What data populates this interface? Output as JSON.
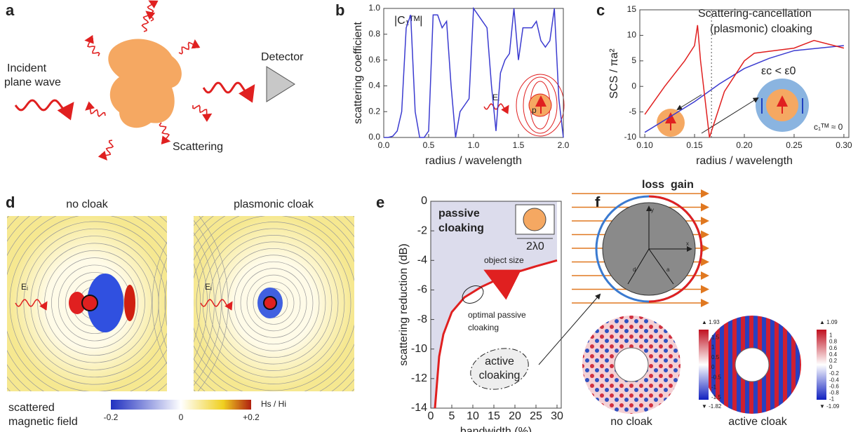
{
  "panels": {
    "a": {
      "letter": "a",
      "incident": [
        "Incident",
        "plane wave"
      ],
      "detector": "Detector",
      "scattering": "Scattering"
    },
    "b": {
      "letter": "b",
      "coefficient_label": "|C₁ᵀᴹ|",
      "field_label": "Eᵢ",
      "dipole_label": "p"
    },
    "c": {
      "letter": "c",
      "title": [
        "Scattering-cancellation",
        "(plasmonic) cloaking"
      ],
      "condition": "εc < ε0",
      "coefficient": "c₁ᵀᴹ ≈ 0"
    },
    "d": {
      "letter": "d",
      "left": "no cloak",
      "right": "plasmonic cloak",
      "field_label": "Eᵢ",
      "caption": [
        "scattered",
        "magnetic field"
      ],
      "colorbar_ticks": [
        "-0.2",
        "0",
        "+0.2"
      ],
      "colorbar_unit": "Hs / Hi"
    },
    "e": {
      "letter": "e",
      "passive": [
        "passive",
        "cloaking"
      ],
      "size": "2λ0",
      "object_size": "object size",
      "optimal": [
        "optimal passive",
        "cloaking"
      ],
      "active": [
        "active",
        "cloaking"
      ]
    },
    "f": {
      "letter": "f",
      "loss": "loss",
      "gain": "gain",
      "axes": [
        "y",
        "x",
        "d",
        "a"
      ],
      "left": "no cloak",
      "right": "active cloak",
      "left_bar": [
        "▲ 1.93",
        "1.5",
        "1",
        "0.5",
        "0",
        "-0.5",
        "-1",
        "-1.5",
        "▼ -1.82"
      ],
      "right_bar": [
        "▲ 1.09",
        "1",
        "0.8",
        "0.6",
        "0.4",
        "0.2",
        "0",
        "-0.2",
        "-0.4",
        "-0.6",
        "-0.8",
        "-1",
        "▼ -1.09"
      ]
    }
  },
  "chart_data": [
    {
      "type": "line",
      "xlabel": "radius / wavelength",
      "ylabel": "scattering coefficient",
      "xlim": [
        0,
        2
      ],
      "ylim": [
        0,
        1
      ],
      "xticks": [
        {
          "value": 0,
          "label": "0.0"
        },
        0.5,
        {
          "value": 1,
          "label": "1.0"
        },
        1.5,
        {
          "value": 2,
          "label": "2.0"
        }
      ],
      "yticks": [
        {
          "value": 0,
          "label": "0.0"
        },
        0.2,
        0.4,
        0.6,
        0.8,
        {
          "value": 1,
          "label": "1.0"
        }
      ],
      "x": [
        0,
        0.05,
        0.1,
        0.15,
        0.2,
        0.25,
        0.3,
        0.35,
        0.4,
        0.45,
        0.5,
        0.55,
        0.6,
        0.65,
        0.7,
        0.75,
        0.8,
        0.85,
        0.9,
        0.95,
        1.0,
        1.05,
        1.1,
        1.15,
        1.2,
        1.25,
        1.3,
        1.35,
        1.4,
        1.45,
        1.5,
        1.55,
        1.6,
        1.65,
        1.7,
        1.75,
        1.8,
        1.85,
        1.9,
        1.95,
        2.0
      ],
      "series": [
        {
          "color": "#3b3bd0",
          "values": [
            0,
            0,
            0.01,
            0.05,
            0.2,
            0.85,
            0.95,
            0.2,
            0,
            0,
            0.05,
            0.95,
            0.95,
            0.85,
            0.9,
            0.4,
            0,
            0.2,
            0.25,
            0.3,
            1.0,
            0.95,
            0.9,
            0.85,
            0.4,
            0.05,
            0.5,
            0.6,
            0.65,
            1.0,
            0.6,
            0.85,
            0.85,
            0.85,
            0.9,
            0.75,
            0.7,
            0.75,
            1.0,
            0.3,
            0
          ]
        }
      ]
    },
    {
      "type": "line",
      "xlabel": "radius / wavelength",
      "ylabel": "SCS / πa²",
      "xlim": [
        0.095,
        0.305
      ],
      "ylim": [
        -10,
        15
      ],
      "xticks": [
        {
          "value": 0.1,
          "label": "0.10"
        },
        0.15,
        {
          "value": 0.2,
          "label": "0.20"
        },
        0.25,
        {
          "value": 0.3,
          "label": "0.30"
        }
      ],
      "yticks": [
        -10,
        -5,
        0,
        5,
        10,
        15
      ],
      "reference_x": 0.167,
      "series": [
        {
          "color": "#3b3bd0",
          "x": [
            0.1,
            0.125,
            0.15,
            0.175,
            0.2,
            0.225,
            0.25,
            0.275,
            0.3
          ],
          "values": [
            -9,
            -6,
            -3,
            0.5,
            3.5,
            5.5,
            7,
            7.5,
            8
          ]
        },
        {
          "color": "#e02020",
          "x": [
            0.1,
            0.12,
            0.14,
            0.15,
            0.153,
            0.156,
            0.165,
            0.18,
            0.2,
            0.21,
            0.25,
            0.27,
            0.3
          ],
          "values": [
            -5.5,
            0,
            5,
            8,
            12,
            5,
            -10,
            -1,
            5,
            6.5,
            7.5,
            9,
            7.5
          ]
        }
      ]
    },
    {
      "type": "line",
      "xlabel": "bandwidth (%)",
      "ylabel": "scattering reduction (dB)",
      "xlim": [
        0,
        31
      ],
      "ylim": [
        -14,
        0
      ],
      "xticks": [
        0,
        5,
        10,
        15,
        20,
        25,
        30
      ],
      "yticks": [
        -14,
        -12,
        -10,
        -8,
        -6,
        -4,
        -2,
        0
      ],
      "x": [
        1,
        2,
        3,
        5,
        8,
        12,
        18,
        25,
        30
      ],
      "series": [
        {
          "color": "#e02020",
          "values": [
            -14,
            -10.5,
            -9,
            -7.5,
            -6.5,
            -5.8,
            -5,
            -4.4,
            -4
          ]
        }
      ]
    }
  ]
}
